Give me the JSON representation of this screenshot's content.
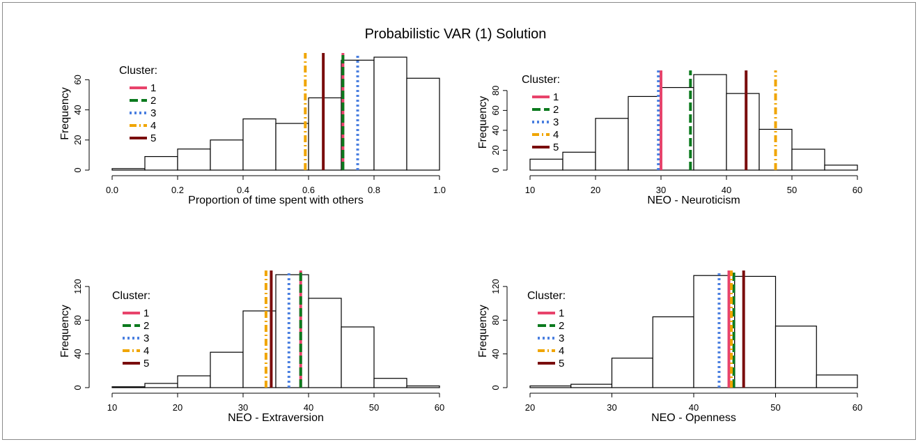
{
  "figure_title": "Probabilistic VAR (1) Solution",
  "legend_title": "Cluster:",
  "cluster_colors": [
    "#e8436b",
    "#0b7a1e",
    "#4a7fe0",
    "#f0a500",
    "#7a0d0d"
  ],
  "cluster_dashes": [
    "solid",
    "long-dash",
    "dotted",
    "dash-dot",
    "solid"
  ],
  "chart_data": [
    {
      "type": "histogram",
      "title": "",
      "xlabel": "Proportion of time spent with others",
      "ylabel": "Frequency",
      "bins": [
        [
          0.0,
          0.1
        ],
        [
          0.1,
          0.2
        ],
        [
          0.2,
          0.3
        ],
        [
          0.3,
          0.4
        ],
        [
          0.4,
          0.5
        ],
        [
          0.5,
          0.6
        ],
        [
          0.6,
          0.7
        ],
        [
          0.7,
          0.8
        ],
        [
          0.8,
          0.9
        ],
        [
          0.9,
          1.0
        ]
      ],
      "values": [
        1,
        9,
        14,
        20,
        34,
        31,
        48,
        73,
        75,
        61
      ],
      "xlim": [
        0,
        1
      ],
      "ylim": [
        0,
        75
      ],
      "xticks": [
        "0.0",
        "0.2",
        "0.4",
        "0.6",
        "0.8",
        "1.0"
      ],
      "xtick_values": [
        0,
        0.2,
        0.4,
        0.6,
        0.8,
        1.0
      ],
      "yticks": [
        "0",
        "20",
        "40",
        "60"
      ],
      "ytick_values": [
        0,
        20,
        40,
        60
      ],
      "cluster_means": [
        {
          "name": "1",
          "value": 0.705
        },
        {
          "name": "2",
          "value": 0.705
        },
        {
          "name": "3",
          "value": 0.75
        },
        {
          "name": "4",
          "value": 0.59
        },
        {
          "name": "5",
          "value": 0.645
        }
      ],
      "legend_location": "top-left"
    },
    {
      "type": "histogram",
      "title": "",
      "xlabel": "NEO - Neuroticism",
      "ylabel": "Frequency",
      "bins": [
        [
          10,
          15
        ],
        [
          15,
          20
        ],
        [
          20,
          25
        ],
        [
          25,
          30
        ],
        [
          30,
          35
        ],
        [
          35,
          40
        ],
        [
          40,
          45
        ],
        [
          45,
          50
        ],
        [
          50,
          55
        ],
        [
          55,
          60
        ]
      ],
      "values": [
        11,
        18,
        52,
        74,
        83,
        96,
        77,
        41,
        21,
        5
      ],
      "xlim": [
        10,
        60
      ],
      "ylim": [
        0,
        96
      ],
      "xticks": [
        "10",
        "20",
        "30",
        "40",
        "50",
        "60"
      ],
      "xtick_values": [
        10,
        20,
        30,
        40,
        50,
        60
      ],
      "yticks": [
        "0",
        "20",
        "40",
        "60",
        "80"
      ],
      "ytick_values": [
        0,
        20,
        40,
        60,
        80
      ],
      "cluster_means": [
        {
          "name": "1",
          "value": 30.0
        },
        {
          "name": "2",
          "value": 34.5
        },
        {
          "name": "3",
          "value": 29.6
        },
        {
          "name": "4",
          "value": 47.5
        },
        {
          "name": "5",
          "value": 43.0
        }
      ],
      "legend_location": "top-left"
    },
    {
      "type": "histogram",
      "title": "",
      "xlabel": "NEO - Extraversion",
      "ylabel": "Frequency",
      "bins": [
        [
          10,
          15
        ],
        [
          15,
          20
        ],
        [
          20,
          25
        ],
        [
          25,
          30
        ],
        [
          30,
          35
        ],
        [
          35,
          40
        ],
        [
          40,
          45
        ],
        [
          45,
          50
        ],
        [
          50,
          55
        ],
        [
          55,
          60
        ]
      ],
      "values": [
        1,
        5,
        14,
        42,
        91,
        134,
        106,
        72,
        11,
        2
      ],
      "xlim": [
        10,
        60
      ],
      "ylim": [
        0,
        134
      ],
      "xticks": [
        "10",
        "20",
        "30",
        "40",
        "50",
        "60"
      ],
      "xtick_values": [
        10,
        20,
        30,
        40,
        50,
        60
      ],
      "yticks": [
        "0",
        "40",
        "80",
        "120"
      ],
      "ytick_values": [
        0,
        40,
        80,
        120
      ],
      "cluster_means": [
        {
          "name": "1",
          "value": 38.8
        },
        {
          "name": "2",
          "value": 38.8
        },
        {
          "name": "3",
          "value": 37.0
        },
        {
          "name": "4",
          "value": 33.5
        },
        {
          "name": "5",
          "value": 34.3
        }
      ],
      "legend_location": "top-left"
    },
    {
      "type": "histogram",
      "title": "",
      "xlabel": "NEO - Openness",
      "ylabel": "Frequency",
      "bins": [
        [
          20,
          25
        ],
        [
          25,
          30
        ],
        [
          30,
          35
        ],
        [
          35,
          40
        ],
        [
          40,
          45
        ],
        [
          45,
          50
        ],
        [
          50,
          55
        ],
        [
          55,
          60
        ]
      ],
      "values": [
        2,
        4,
        35,
        84,
        133,
        132,
        73,
        15
      ],
      "xlim": [
        20,
        60
      ],
      "ylim": [
        0,
        134
      ],
      "xticks": [
        "20",
        "30",
        "40",
        "50",
        "60"
      ],
      "xtick_values": [
        20,
        30,
        40,
        50,
        60
      ],
      "yticks": [
        "0",
        "40",
        "80",
        "120"
      ],
      "ytick_values": [
        0,
        40,
        80,
        120
      ],
      "cluster_means": [
        {
          "name": "1",
          "value": 44.3
        },
        {
          "name": "2",
          "value": 44.9
        },
        {
          "name": "3",
          "value": 43.1
        },
        {
          "name": "4",
          "value": 44.6
        },
        {
          "name": "5",
          "value": 46.1
        }
      ],
      "legend_location": "top-left"
    }
  ]
}
